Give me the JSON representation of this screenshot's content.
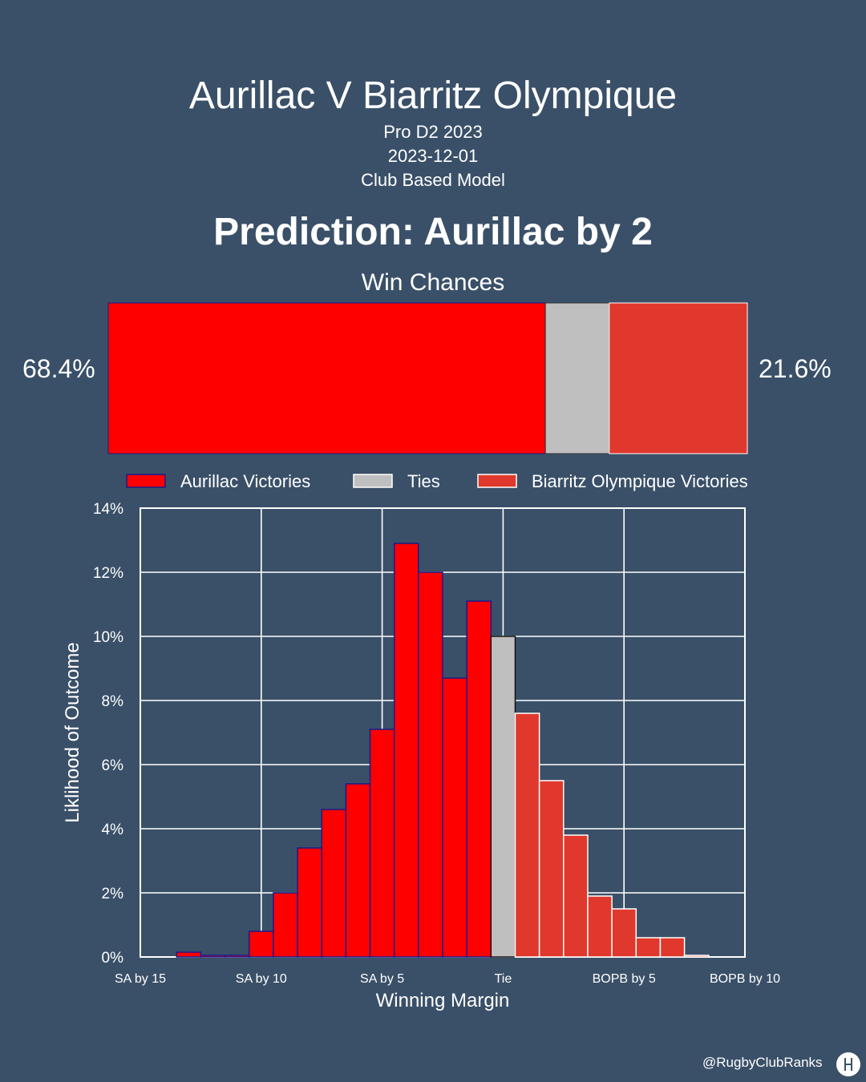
{
  "header": {
    "title": "Aurillac V Biarritz Olympique",
    "league": "Pro D2 2023",
    "date": "2023-12-01",
    "model": "Club Based Model",
    "prediction": "Prediction: Aurillac by 2"
  },
  "win_chances": {
    "title": "Win Chances",
    "home_label": "68.4%",
    "away_label": "21.6%",
    "home": 68.4,
    "tie": 10.0,
    "away": 21.6
  },
  "legend": {
    "home": "Aurillac Victories",
    "tie": "Ties",
    "away": "Biarritz Olympique Victories"
  },
  "colors": {
    "home": "#ff0000",
    "tie": "#bfbfbf",
    "away": "#e0382c",
    "background": "#3a5068"
  },
  "chart_data": {
    "type": "bar",
    "xlabel": "Winning Margin",
    "ylabel": "Liklihood of Outcome",
    "ylim": [
      0,
      14
    ],
    "xlim": [
      -15,
      10
    ],
    "grid": true,
    "legend_position": "top",
    "yticks": [
      "0%",
      "2%",
      "4%",
      "6%",
      "8%",
      "10%",
      "12%",
      "14%"
    ],
    "xticks": [
      {
        "x": -15,
        "label": "SA by 15"
      },
      {
        "x": -10,
        "label": "SA by 10"
      },
      {
        "x": -5,
        "label": "SA by 5"
      },
      {
        "x": 0,
        "label": "Tie"
      },
      {
        "x": 5,
        "label": "BOPB by 5"
      },
      {
        "x": 10,
        "label": "BOPB by 10"
      }
    ],
    "series": [
      {
        "name": "Aurillac Victories",
        "color": "#ff0000",
        "margins": [
          -13,
          -12,
          -11,
          -10,
          -9,
          -8,
          -7,
          -6,
          -5,
          -4,
          -3,
          -2,
          -1
        ],
        "values": [
          0.15,
          0.05,
          0.05,
          0.8,
          2.0,
          3.4,
          4.6,
          5.4,
          7.1,
          12.9,
          12.0,
          8.7,
          11.1
        ]
      },
      {
        "name": "Ties",
        "color": "#bfbfbf",
        "margins": [
          0
        ],
        "values": [
          10.0
        ]
      },
      {
        "name": "Biarritz Olympique Victories",
        "color": "#e0382c",
        "margins": [
          1,
          2,
          3,
          4,
          5,
          6,
          7,
          8
        ],
        "values": [
          7.6,
          5.5,
          3.8,
          1.9,
          1.5,
          0.6,
          0.6,
          0.05
        ]
      }
    ]
  },
  "footer": {
    "handle": "@RugbyClubRanks"
  }
}
